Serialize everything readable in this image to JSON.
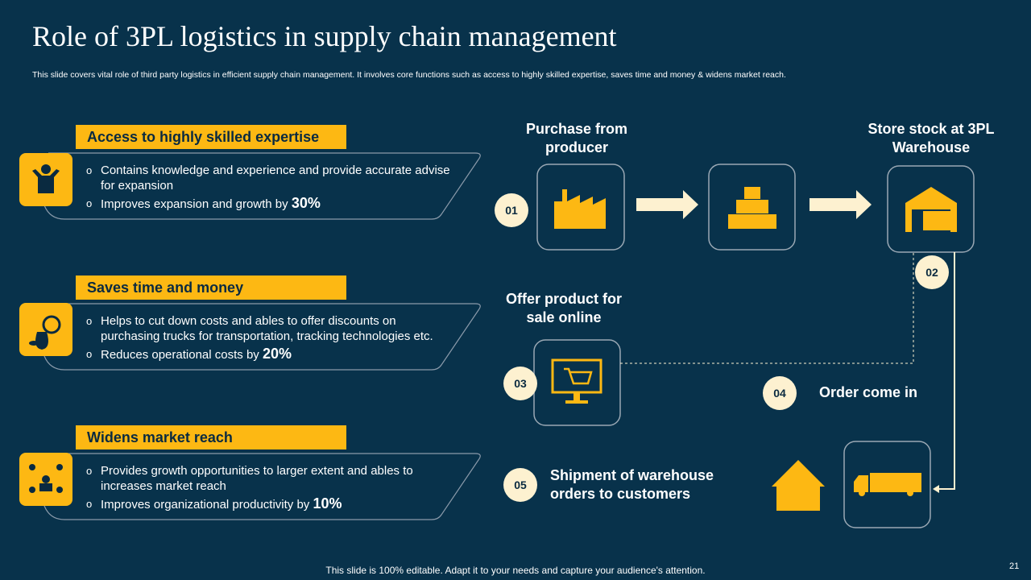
{
  "header": {
    "title": "Role of 3PL logistics in supply chain management",
    "subtitle": "This slide covers vital role of third party logistics in efficient supply chain management. It involves core functions such as access to highly skilled expertise, saves time and money & widens market reach."
  },
  "functions": [
    {
      "title": "Access to highly skilled expertise",
      "bullets": [
        {
          "text": "Contains knowledge and experience  and provide accurate advise for expansion"
        },
        {
          "text": "Improves expansion and growth by",
          "highlight": "30%"
        }
      ]
    },
    {
      "title": "Saves time and money",
      "bullets": [
        {
          "text": "Helps to cut down costs and ables to offer discounts on purchasing trucks for transportation, tracking technologies etc."
        },
        {
          "text": "Reduces operational costs by",
          "highlight": "20%"
        }
      ]
    },
    {
      "title": "Widens market reach",
      "bullets": [
        {
          "text": "Provides growth opportunities to larger extent and ables to increases market reach"
        },
        {
          "text": "Improves organizational productivity by",
          "highlight": "10%"
        }
      ]
    }
  ],
  "steps": [
    {
      "number": "01",
      "label": "Purchase from producer"
    },
    {
      "number": "02",
      "label": "Store stock at 3PL Warehouse"
    },
    {
      "number": "03",
      "label": "Offer product for sale online"
    },
    {
      "number": "04",
      "label": "Order come in"
    },
    {
      "number": "05",
      "label": "Shipment of warehouse orders to customers"
    }
  ],
  "footer": {
    "note": "This slide is 100% editable. Adapt it to your needs and capture your audience's attention.",
    "page": "21"
  }
}
